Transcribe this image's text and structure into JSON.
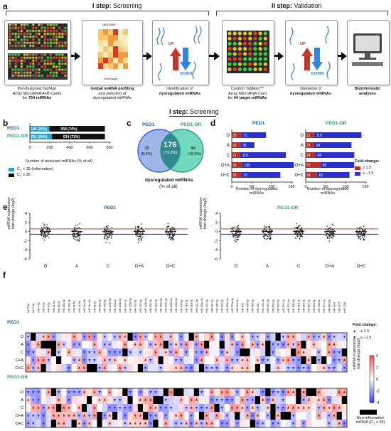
{
  "panel_labels": {
    "a": "a",
    "b": "b",
    "c": "c",
    "d": "d",
    "e": "e",
    "f": "f"
  },
  "steps": {
    "step1_prefix": "I step:",
    "step1_rest": " Screening",
    "step2_prefix": "II step:",
    "step2_rest": " Validation"
  },
  "workflow": {
    "box1_line1": "Pre-designed TaqMan",
    "box1_line2": "Array MicroRNA A+B Cards",
    "box1_line3_pre": "for ",
    "box1_line3_bold": "754 miRNAs",
    "box2_heatmap": "HEATMAP",
    "box2_fold": "Fold change",
    "box2_line1": "Global miRNA profiling",
    "box2_line2": "and selection of",
    "box2_line3": "dysregulated miRNAs",
    "box3_line1": "Identification of",
    "box3_line2": "dysregulated miRNAs",
    "box3_up": "UP",
    "box3_down": "DOWN",
    "box4_line1": "Custom TaqMan™",
    "box4_line2": "Array MicroRNA Card",
    "box4_line3_pre": "for ",
    "box4_line3_bold": "44 target miRNAs",
    "box5_line1": "Validation of",
    "box5_line2": "dysregulated miRNAs",
    "box5_up": "UP",
    "box5_down": "DOWN",
    "box6_line1": "Bioinformatic",
    "box6_line2": "analyses"
  },
  "lower_step": {
    "prefix": "I step:",
    "rest": " Screening"
  },
  "panel_b": {
    "rows": [
      {
        "name": "PEO1",
        "informative": "196 (26%)",
        "noninf": "558 (74%)",
        "inf_val": 196,
        "non_val": 558
      },
      {
        "name": "PEO1-OR",
        "informative": "220 (29%)",
        "noninf": "534 (71%)",
        "inf_val": 220,
        "non_val": 534
      }
    ],
    "xticks": [
      "0",
      "200",
      "400",
      "600",
      "800"
    ],
    "xlabel": "Number of analyzed miRNAs (% of all)",
    "legend1": "C",
    "legend1_sub": "T",
    "legend1_rest": " < 35 (informative)",
    "legend2": "C",
    "legend2_sub": "T",
    "legend2_rest": " ≥ 35",
    "color_inf": "#2aa4c7",
    "color_non": "#111111"
  },
  "panel_c": {
    "left_name": "PEO1",
    "right_name": "PEO1-OR",
    "left_only": "20",
    "left_only_pct": "(8.3%)",
    "both": "176",
    "both_pct": "(73.3%)",
    "right_only": "44",
    "right_only_pct": "(18.3%)",
    "caption1": "dysregulated miRNAs",
    "caption2": "(% of all)"
  },
  "panel_d": {
    "left_title": "PEO1",
    "right_title": "PEO1-OR",
    "categories": [
      "O",
      "A",
      "C",
      "O+A",
      "O+C"
    ],
    "left_up": [
      25,
      22,
      21,
      26,
      25
    ],
    "left_down": [
      61,
      35,
      115,
      130,
      97
    ],
    "right_up": [
      21,
      21,
      24,
      37,
      28
    ],
    "right_down": [
      119,
      94,
      98,
      85,
      82
    ],
    "xticks": [
      "0",
      "50",
      "100",
      "150"
    ],
    "xlabel1": "Number of dysregulated",
    "xlabel2": "miRNAs",
    "legend_title": "Fold-change:",
    "legend_up": "≥ 1.5",
    "legend_down": "≤ −1.5",
    "color_up": "#b5322a",
    "color_down": "#2a30c8"
  },
  "panel_e": {
    "left_title": "PEO1",
    "right_title": "PEO1-OR",
    "ylabel1": "miRNA expression",
    "ylabel2": "fold change (log2)",
    "yticks": [
      "4",
      "2",
      "0",
      "-2",
      "-4",
      "-6"
    ],
    "categories": [
      "O",
      "A",
      "C",
      "O+A",
      "O+C"
    ]
  },
  "panel_f": {
    "mirnas": [
      "let-7f-5p",
      "let-7i-3p",
      "miR-7-5p",
      "miR-9-3p",
      "miR-9-5p",
      "miR-21-5p",
      "miR-25-3p",
      "miR-26b-5p",
      "miR-29b-3p",
      "miR-31-5p",
      "miR-32-5p",
      "miR-34a-5p",
      "miR-34c-5p",
      "miR-96-5p",
      "miR-99a-5p",
      "miR-100-5p",
      "miR-125b-5p",
      "miR-128-3p",
      "miR-130b-3p",
      "miR-132-3p",
      "miR-135b-5p",
      "miR-141-3p",
      "miR-145-5p",
      "miR-148a-3p",
      "miR-182-5p",
      "miR-183-5p",
      "miR-193a-5p",
      "miR-200a-3p",
      "miR-200b-3p",
      "miR-200c-3p",
      "miR-205-5p",
      "miR-210-3p",
      "miR-218-5p",
      "miR-221-3p",
      "miR-301b-3p",
      "miR-324-3p",
      "miR-331-3p",
      "miR-335-5p",
      "miR-339-3p",
      "miR-365a-3p",
      "miR-376a-3p",
      "miR-410-3p",
      "miR-429",
      "miR-455-5p",
      "miR-483-3p",
      "miR-484",
      "miR-493-3p",
      "miR-494-3p",
      "miR-502-3p",
      "miR-503-5p",
      "miR-542-3p",
      "miR-574-3p",
      "miR-590-5p",
      "miR-615-3p",
      "miR-625-3p",
      "miR-654-3p",
      "miR-660-5p",
      "miR-708-5p",
      "miR-874-3p",
      "miR-886-5p",
      "miR-1201",
      "miR-1275",
      "miR-1290"
    ],
    "row_labels": [
      "O",
      "A",
      "C",
      "O+A",
      "O+C"
    ],
    "group1": "PEO1",
    "group2": "PEO1-OR",
    "legend_title": "Fold change:",
    "legend_up": "≥ 1.5",
    "legend_down": "≤ −1.5",
    "scale_ticks": [
      "4",
      "2",
      "0",
      "-2",
      "-4"
    ],
    "scale_label1": "miRNA expression",
    "scale_label2": "fold change (log2)",
    "noninf1": "Non-informative",
    "noninf2": "miRNA (C",
    "noninf2_sub": "T",
    "noninf2_rest": " ≥ 35)",
    "heatmap_grid": {
      "row_count": 5,
      "col_count": 63
    }
  }
}
